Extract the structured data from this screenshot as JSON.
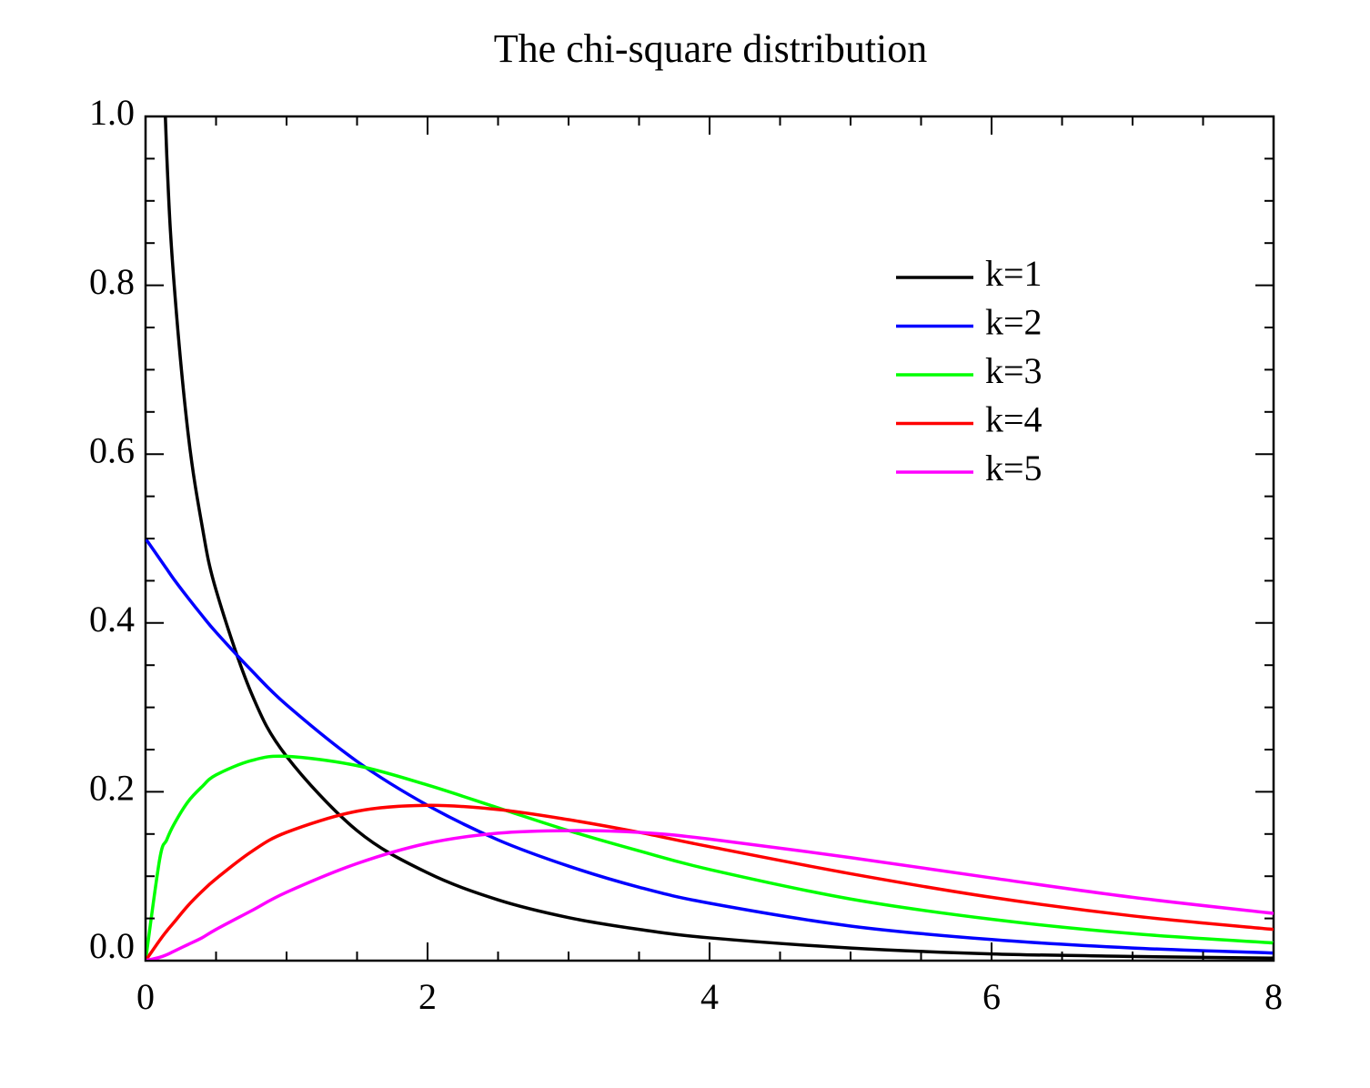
{
  "chart_data": {
    "type": "line",
    "title": "The chi-square distribution",
    "x": [
      0,
      0.1,
      0.15,
      0.2,
      0.3,
      0.4,
      0.5,
      0.75,
      1,
      1.5,
      2,
      2.5,
      3,
      3.5,
      4,
      5,
      6,
      7,
      8
    ],
    "series": [
      {
        "name": "k=1",
        "color": "#000000",
        "values": [
          null,
          1.2,
          0.956,
          0.807,
          0.627,
          0.516,
          0.439,
          0.317,
          0.242,
          0.154,
          0.104,
          0.072,
          0.051,
          0.037,
          0.027,
          0.015,
          0.008,
          0.005,
          0.003
        ]
      },
      {
        "name": "k=2",
        "color": "#0000ff",
        "values": [
          0.5,
          0.476,
          0.464,
          0.452,
          0.43,
          0.409,
          0.389,
          0.344,
          0.303,
          0.236,
          0.184,
          0.143,
          0.112,
          0.087,
          0.068,
          0.041,
          0.025,
          0.015,
          0.009
        ]
      },
      {
        "name": "k=3",
        "color": "#00ff00",
        "values": [
          0,
          0.12,
          0.143,
          0.161,
          0.188,
          0.206,
          0.22,
          0.237,
          0.242,
          0.231,
          0.208,
          0.181,
          0.154,
          0.13,
          0.108,
          0.073,
          0.049,
          0.032,
          0.021
        ]
      },
      {
        "name": "k=4",
        "color": "#ff0000",
        "values": [
          0,
          0.024,
          0.035,
          0.045,
          0.065,
          0.082,
          0.097,
          0.129,
          0.152,
          0.177,
          0.184,
          0.179,
          0.167,
          0.152,
          0.135,
          0.103,
          0.075,
          0.053,
          0.037
        ]
      },
      {
        "name": "k=5",
        "color": "#ff00ff",
        "values": [
          0,
          0.004,
          0.007,
          0.011,
          0.019,
          0.027,
          0.037,
          0.059,
          0.081,
          0.115,
          0.139,
          0.151,
          0.154,
          0.152,
          0.144,
          0.122,
          0.098,
          0.075,
          0.056
        ]
      }
    ],
    "xlim": [
      0,
      8
    ],
    "xticks": [
      0,
      2,
      4,
      6,
      8
    ],
    "ylim": [
      0,
      1
    ],
    "yticks": [
      {
        "value": 0,
        "label": "0.0"
      },
      0.2,
      0.4,
      0.6,
      0.8,
      {
        "value": 1,
        "label": "1.0"
      }
    ],
    "legend": "upper right",
    "grid": false
  }
}
